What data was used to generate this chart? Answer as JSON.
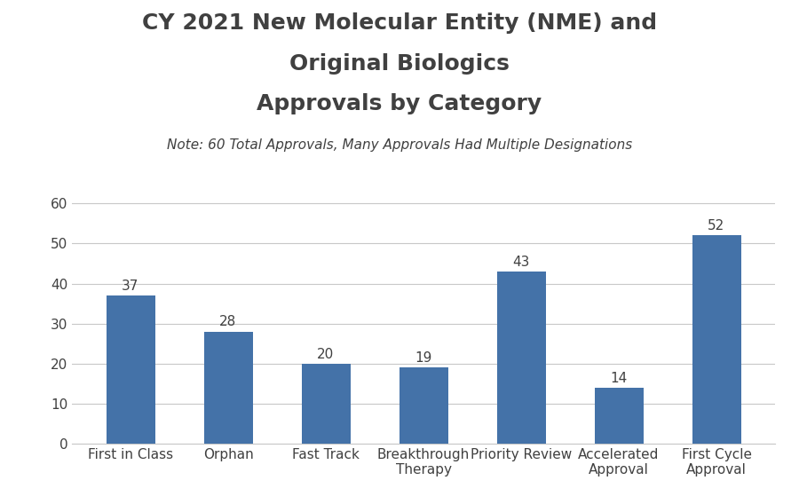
{
  "title_line1": "CY 2021 New Molecular Entity (NME) and",
  "title_line2": "Original Biologics",
  "title_line3": "Approvals by Category",
  "subtitle": "Note: 60 Total Approvals, Many Approvals Had Multiple Designations",
  "categories": [
    "First in Class",
    "Orphan",
    "Fast Track",
    "Breakthrough\nTherapy",
    "Priority Review",
    "Accelerated\nApproval",
    "First Cycle\nApproval"
  ],
  "values": [
    37,
    28,
    20,
    19,
    43,
    14,
    52
  ],
  "bar_color": "#4472A8",
  "ylim": [
    0,
    63
  ],
  "yticks": [
    0,
    10,
    20,
    30,
    40,
    50,
    60
  ],
  "title_fontsize": 18,
  "subtitle_fontsize": 11,
  "tick_fontsize": 11,
  "value_label_fontsize": 11,
  "background_color": "#ffffff",
  "grid_color": "#c8c8c8",
  "title_color": "#404040",
  "tick_color": "#404040",
  "bar_width": 0.5
}
